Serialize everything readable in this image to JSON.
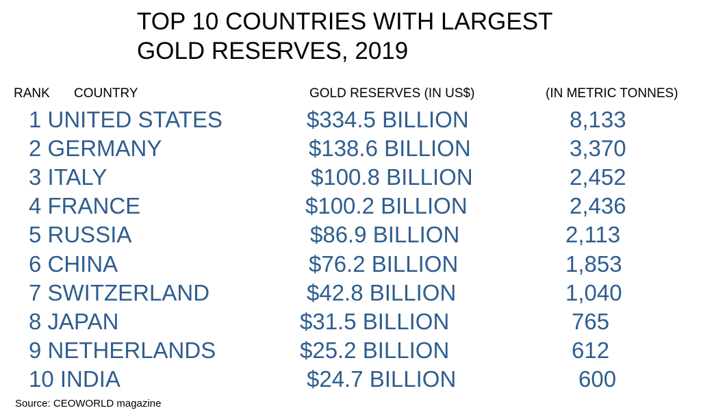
{
  "title": {
    "line1": "TOP 10 COUNTRIES WITH LARGEST",
    "line2": "GOLD RESERVES, 2019"
  },
  "headers": {
    "rank": "RANK",
    "country": "COUNTRY",
    "usd": "GOLD RESERVES  (IN US$)",
    "tonnes": "(IN METRIC TONNES)"
  },
  "source": "Source: CEOWORLD magazine",
  "colors": {
    "row_text": "#2f5d8f",
    "header_text": "#000000"
  },
  "chart_data": {
    "type": "table",
    "title": "TOP 10 COUNTRIES WITH LARGEST GOLD RESERVES, 2019",
    "columns": [
      "RANK",
      "COUNTRY",
      "GOLD RESERVES  (IN US$)",
      "(IN METRIC TONNES)"
    ],
    "rows": [
      {
        "rank": 1,
        "country": "UNITED STATES",
        "usd": "$334.5 BILLION",
        "tonnes": "8,133"
      },
      {
        "rank": 2,
        "country": "GERMANY",
        "usd": "$138.6 BILLION",
        "tonnes": "3,370"
      },
      {
        "rank": 3,
        "country": "ITALY",
        "usd": "$100.8 BILLION",
        "tonnes": "2,452"
      },
      {
        "rank": 4,
        "country": "FRANCE",
        "usd": "$100.2 BILLION",
        "tonnes": "2,436"
      },
      {
        "rank": 5,
        "country": "RUSSIA",
        "usd": "$86.9 BILLION",
        "tonnes": "2,113"
      },
      {
        "rank": 6,
        "country": "CHINA",
        "usd": "$76.2 BILLION",
        "tonnes": "1,853"
      },
      {
        "rank": 7,
        "country": "SWITZERLAND",
        "usd": "$42.8 BILLION",
        "tonnes": "1,040"
      },
      {
        "rank": 8,
        "country": "JAPAN",
        "usd": "$31.5 BILLION",
        "tonnes": "765"
      },
      {
        "rank": 9,
        "country": "NETHERLANDS",
        "usd": "$25.2 BILLION",
        "tonnes": "612"
      },
      {
        "rank": 10,
        "country": "INDIA",
        "usd": "$24.7 BILLION",
        "tonnes": "600"
      }
    ]
  }
}
